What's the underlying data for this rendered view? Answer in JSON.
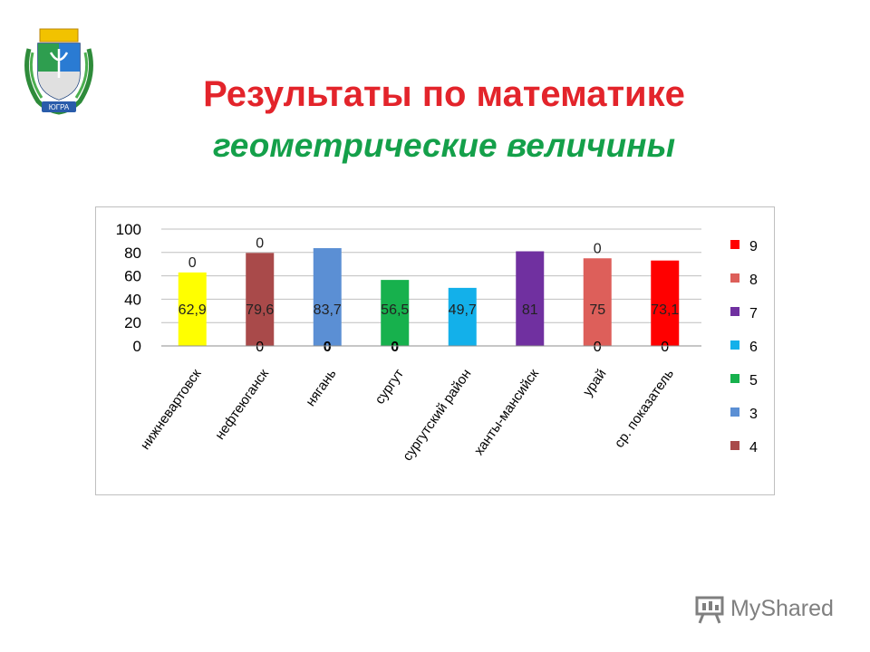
{
  "header": {
    "title": "Результаты  по математике",
    "subtitle": "геометрические величины"
  },
  "emblem": {
    "label": "ЮГРА"
  },
  "watermark": {
    "text": "MyShared"
  },
  "chart_data": {
    "type": "bar",
    "categories": [
      "нижневартовск",
      "нефтеюганск",
      "нягань",
      "сургут",
      "сургутский район",
      "ханты-мансийск",
      "урай",
      "ср. показатель"
    ],
    "values": [
      62.9,
      79.6,
      83.7,
      56.5,
      49.7,
      81,
      75,
      73.1
    ],
    "value_labels": [
      "62,9",
      "79,6",
      "83,7",
      "56,5",
      "49,7",
      "81",
      "75",
      "73,1"
    ],
    "bar_colors": [
      "#ffff00",
      "#a94a4a",
      "#5b8fd4",
      "#17b14d",
      "#13b0ea",
      "#7030a0",
      "#dd5f5a",
      "#ff0000"
    ],
    "top_labels": [
      "0",
      "0",
      "",
      "",
      "",
      "",
      "0",
      ""
    ],
    "bottom_labels": [
      "",
      "0",
      "0",
      "0",
      "",
      "",
      "0",
      "0"
    ],
    "yticks": [
      "0",
      "20",
      "40",
      "60",
      "80",
      "100"
    ],
    "ylim": [
      0,
      100
    ],
    "grid": true,
    "legend_position": "right",
    "legend": [
      {
        "name": "9",
        "color": "#ff0000"
      },
      {
        "name": "8",
        "color": "#dd5f5a"
      },
      {
        "name": "7",
        "color": "#7030a0"
      },
      {
        "name": "6",
        "color": "#13b0ea"
      },
      {
        "name": "5",
        "color": "#17b14d"
      },
      {
        "name": "3",
        "color": "#5b8fd4"
      },
      {
        "name": "4",
        "color": "#a94a4a"
      }
    ]
  }
}
